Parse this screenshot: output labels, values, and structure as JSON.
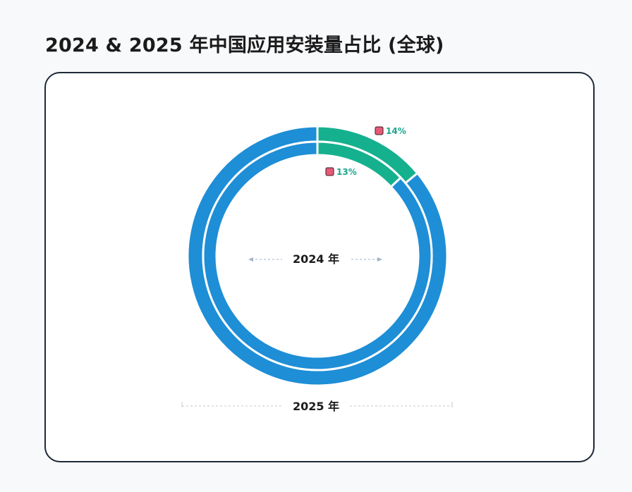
{
  "title": "2024 & 2025 年中国应用安装量占比 (全球)",
  "chart_data": {
    "type": "pie",
    "rings": [
      {
        "name": "2025 年",
        "ring": "outer",
        "share_pct": 14
      },
      {
        "name": "2024 年",
        "ring": "inner",
        "share_pct": 13
      }
    ],
    "labels": {
      "outer": "14%",
      "inner": "13%",
      "inner_ring": "2024 年",
      "outer_ring": "2025 年"
    },
    "colors": {
      "share": "#15b18f",
      "rest": "#1e8ed6",
      "marker": "#e55b78"
    }
  }
}
